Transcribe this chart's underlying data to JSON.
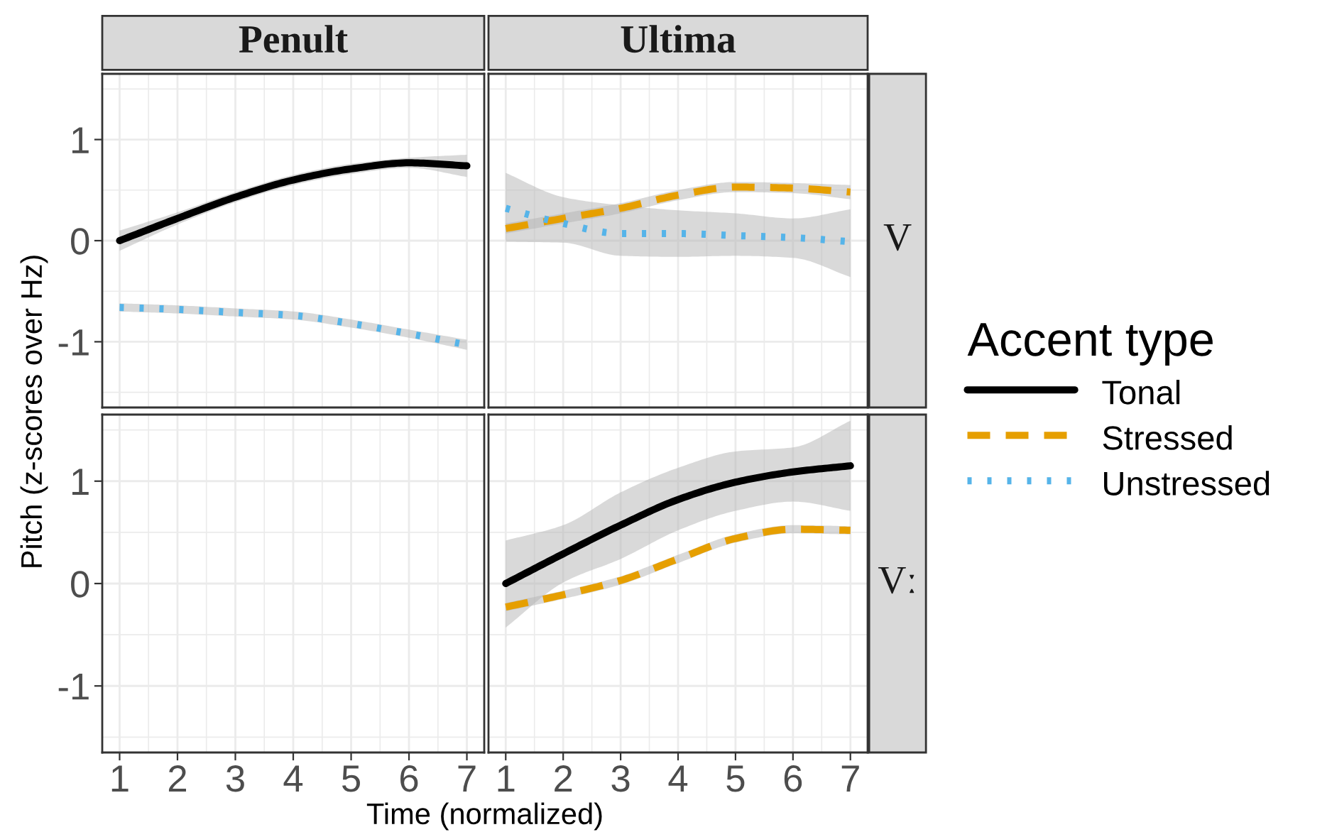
{
  "chart_data": [
    {
      "type": "line",
      "title": "Penult",
      "x": [
        1,
        2,
        3,
        4,
        5,
        6,
        7
      ],
      "xlim": [
        0.7,
        7.3
      ],
      "xticks": [
        1,
        2,
        3,
        4,
        5,
        6,
        7
      ],
      "ylim": [
        -1.65,
        1.65
      ],
      "yticks": [
        -1,
        0,
        1
      ],
      "grid": true,
      "tick_labels": "y",
      "legend": "right",
      "series": [
        {
          "name": "Tonal",
          "color": "#000000",
          "line_style": "solid",
          "values": [
            0.0,
            0.22,
            0.43,
            0.6,
            0.71,
            0.77,
            0.74
          ],
          "lower": [
            -0.1,
            0.16,
            0.38,
            0.55,
            0.66,
            0.72,
            0.63
          ],
          "upper": [
            0.1,
            0.28,
            0.48,
            0.65,
            0.76,
            0.82,
            0.85
          ]
        },
        {
          "name": "Unstressed",
          "color": "#56b4e9",
          "line_style": "dotted",
          "values": [
            -0.66,
            -0.68,
            -0.71,
            -0.74,
            -0.82,
            -0.92,
            -1.03
          ],
          "lower": [
            -0.7,
            -0.72,
            -0.75,
            -0.78,
            -0.86,
            -0.96,
            -1.08
          ],
          "upper": [
            -0.62,
            -0.64,
            -0.67,
            -0.7,
            -0.78,
            -0.88,
            -0.98
          ]
        }
      ]
    },
    {
      "type": "line",
      "title": "Ultima",
      "annotations": [
        "V"
      ],
      "legend_title": "Accent type",
      "legend": "right",
      "x": [
        1,
        2,
        3,
        4,
        5,
        6,
        7
      ],
      "xlim": [
        0.7,
        7.3
      ],
      "xticks": [
        1,
        2,
        3,
        4,
        5,
        6,
        7
      ],
      "ylim": [
        -1.65,
        1.65
      ],
      "yticks": [
        -1,
        0,
        1
      ],
      "grid": true,
      "tick_labels": false,
      "series": [
        {
          "name": "Stressed",
          "color": "#e69f00",
          "line_style": "dashed",
          "values": [
            0.12,
            0.22,
            0.32,
            0.45,
            0.53,
            0.52,
            0.48
          ],
          "lower": [
            0.07,
            0.17,
            0.27,
            0.4,
            0.48,
            0.47,
            0.41
          ],
          "upper": [
            0.17,
            0.27,
            0.37,
            0.5,
            0.58,
            0.57,
            0.55
          ]
        },
        {
          "name": "Unstressed",
          "color": "#56b4e9",
          "line_style": "dotted",
          "values": [
            0.32,
            0.17,
            0.07,
            0.07,
            0.05,
            0.03,
            -0.01
          ],
          "lower": [
            -0.01,
            -0.02,
            -0.15,
            -0.16,
            -0.15,
            -0.17,
            -0.36
          ],
          "upper": [
            0.67,
            0.43,
            0.35,
            0.3,
            0.27,
            0.22,
            0.31
          ]
        }
      ]
    },
    {
      "type": "line",
      "xlabel": "Time (normalized)",
      "ylabel": "Pitch (z-scores over Hz)",
      "xlim": [
        0.7,
        7.3
      ],
      "xticks": [
        1,
        2,
        3,
        4,
        5,
        6,
        7
      ],
      "ylim": [
        -1.65,
        1.65
      ],
      "yticks": [
        -1,
        0,
        1
      ],
      "grid": true
    },
    {
      "type": "line",
      "annotations": [
        "Vː"
      ],
      "legend": "right",
      "x": [
        1,
        2,
        3,
        4,
        5,
        6,
        7
      ],
      "xlim": [
        0.7,
        7.3
      ],
      "xticks": [
        1,
        2,
        3,
        4,
        5,
        6,
        7
      ],
      "ylim": [
        -1.65,
        1.65
      ],
      "yticks": [
        -1,
        0,
        1
      ],
      "grid": true,
      "tick_labels": "x",
      "series": [
        {
          "name": "Tonal",
          "color": "#000000",
          "line_style": "solid",
          "values": [
            0.0,
            0.29,
            0.57,
            0.82,
            0.99,
            1.09,
            1.15
          ],
          "lower": [
            -0.43,
            0.01,
            0.24,
            0.52,
            0.71,
            0.8,
            0.71
          ],
          "upper": [
            0.42,
            0.57,
            0.89,
            1.13,
            1.29,
            1.33,
            1.59
          ]
        },
        {
          "name": "Stressed",
          "color": "#e69f00",
          "line_style": "dashed",
          "values": [
            -0.23,
            -0.11,
            0.03,
            0.24,
            0.44,
            0.53,
            0.52
          ],
          "lower": [
            -0.27,
            -0.15,
            -0.01,
            0.2,
            0.4,
            0.49,
            0.48
          ],
          "upper": [
            -0.19,
            -0.07,
            0.07,
            0.28,
            0.48,
            0.57,
            0.56
          ]
        }
      ]
    }
  ]
}
